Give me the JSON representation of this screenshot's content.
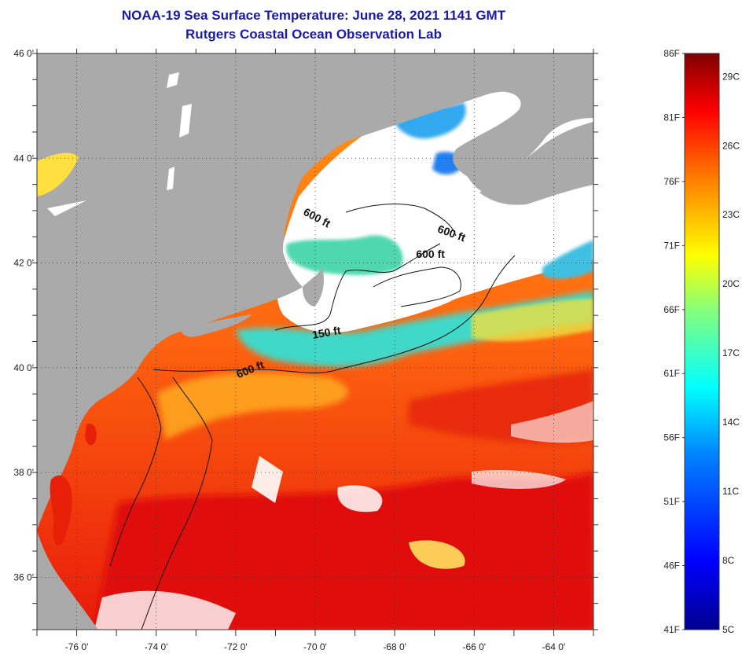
{
  "title": "NOAA-19 Sea Surface Temperature:  June 28, 2021 1141 GMT",
  "subtitle": "Rutgers Coastal Ocean Observation Lab",
  "map": {
    "lon_range": [
      -77,
      -63
    ],
    "lat_range": [
      35,
      46
    ],
    "lat_labels": [
      {
        "value": 46,
        "label": "46 0'"
      },
      {
        "value": 44,
        "label": "44 0'"
      },
      {
        "value": 42,
        "label": "42 0'"
      },
      {
        "value": 40,
        "label": "40 0'"
      },
      {
        "value": 38,
        "label": "38 0'"
      },
      {
        "value": 36,
        "label": "36 0'"
      }
    ],
    "lon_labels": [
      {
        "value": -76,
        "label": "-76 0'"
      },
      {
        "value": -74,
        "label": "-74 0'"
      },
      {
        "value": -72,
        "label": "-72 0'"
      },
      {
        "value": -70,
        "label": "-70 0'"
      },
      {
        "value": -68,
        "label": "-68 0'"
      },
      {
        "value": -66,
        "label": "-66 0'"
      },
      {
        "value": -64,
        "label": "-64 0'"
      }
    ],
    "contour_labels": [
      {
        "text": "600 ft",
        "lon": -70.0,
        "lat": 42.8
      },
      {
        "text": "600 ft",
        "lon": -66.6,
        "lat": 42.5
      },
      {
        "text": "600 ft",
        "lon": -67.1,
        "lat": 42.1
      },
      {
        "text": "150 ft",
        "lon": -69.7,
        "lat": 40.6
      },
      {
        "text": "600 ft",
        "lon": -71.6,
        "lat": 39.9
      }
    ],
    "colors": {
      "land": "#aaaaaa",
      "cloud": "#ffffff",
      "grid": "#333333"
    }
  },
  "colorbar": {
    "fahrenheit": [
      "86F",
      "81F",
      "76F",
      "71F",
      "66F",
      "61F",
      "56F",
      "51F",
      "46F",
      "41F"
    ],
    "celsius": [
      "29C",
      "26C",
      "23C",
      "20C",
      "17C",
      "14C",
      "11C",
      "8C",
      "5C"
    ],
    "range_f": [
      41,
      86
    ]
  }
}
